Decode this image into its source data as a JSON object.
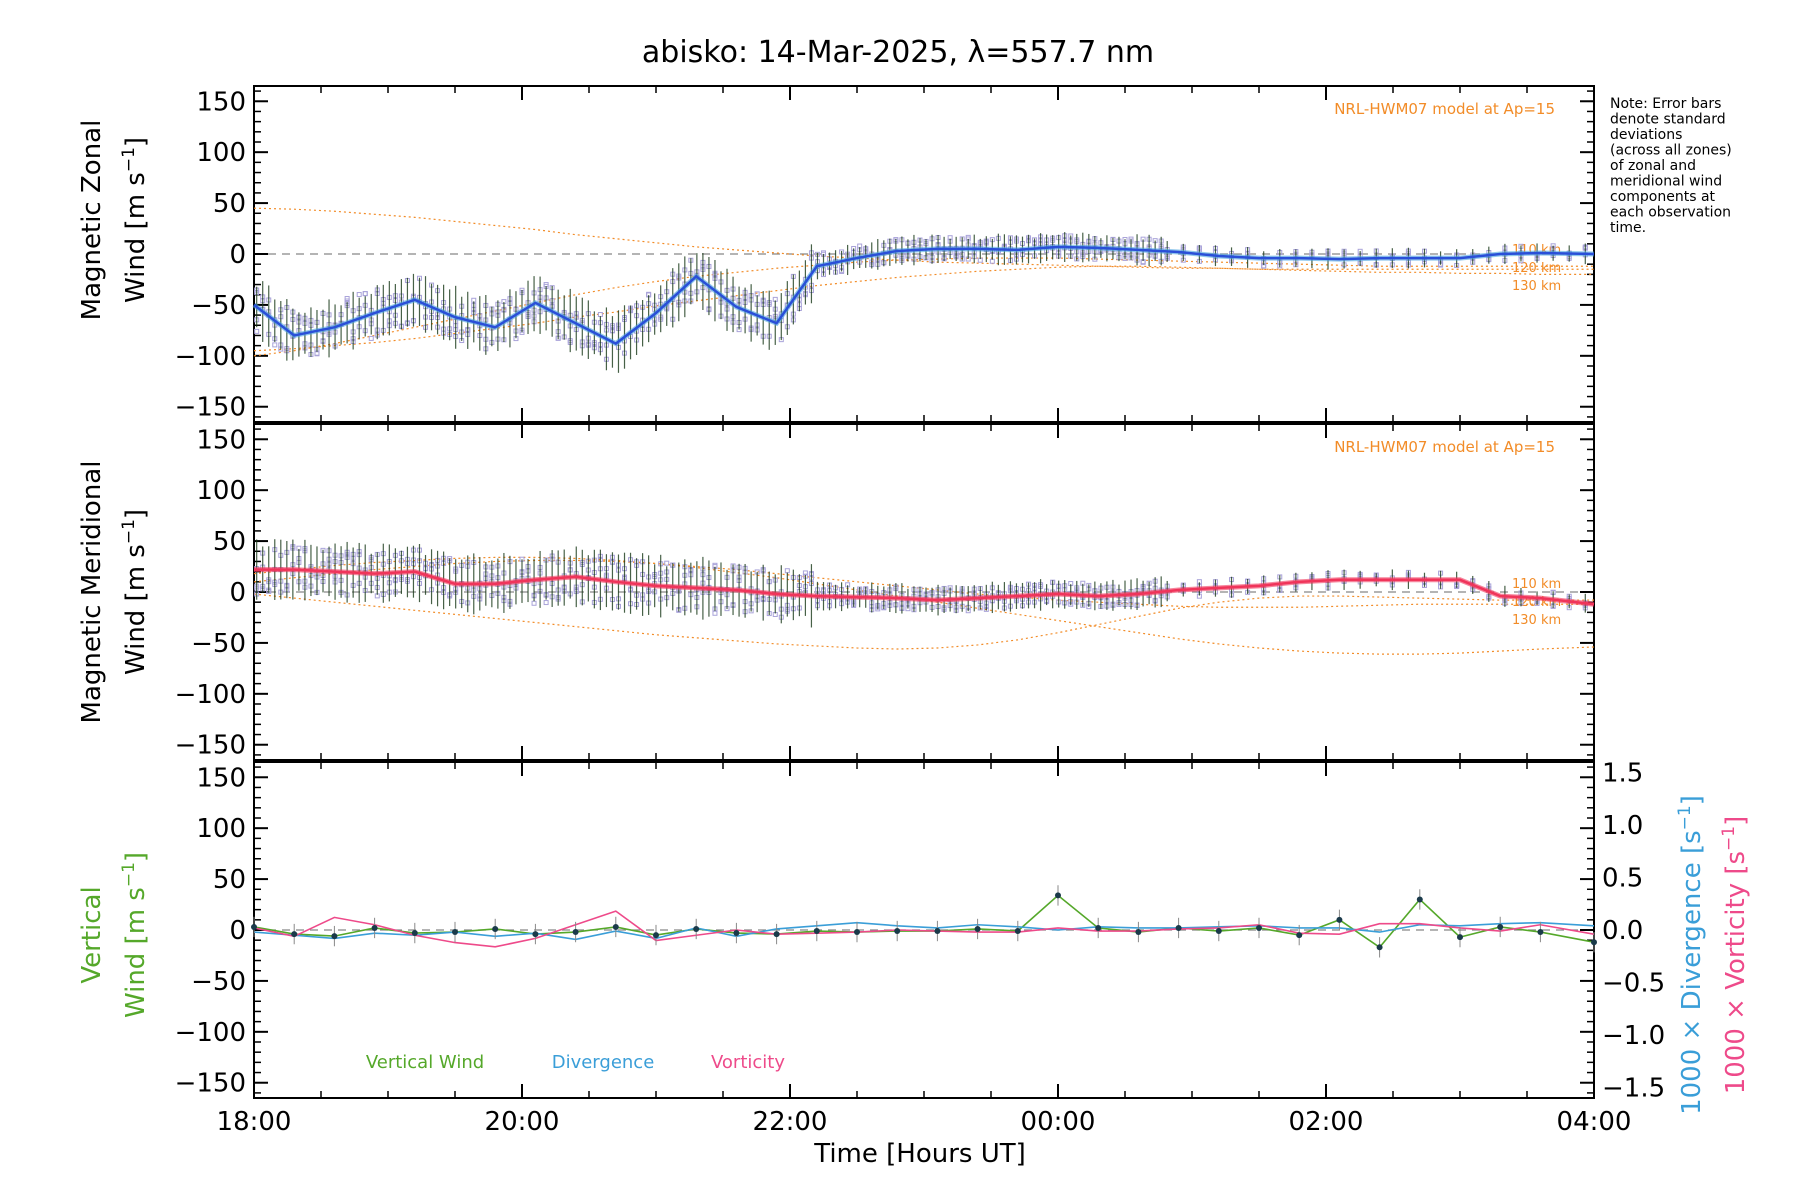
{
  "title": "abisko: 14-Mar-2025, λ=557.7 nm",
  "xlabel": "Time [Hours UT]",
  "xticks": [
    "18:00",
    "20:00",
    "22:00",
    "00:00",
    "02:00",
    "04:00"
  ],
  "yticks": [
    "150",
    "100",
    "50",
    "0",
    "−50",
    "−100",
    "−150"
  ],
  "rticks": [
    "1.5",
    "1.0",
    "0.5",
    "0.0",
    "−0.5",
    "−1.0",
    "−1.5"
  ],
  "note": [
    "Note: Error bars",
    "denote standard",
    "deviations",
    "(across all zones)",
    "of zonal and",
    "meridional wind",
    "components at",
    "each observation",
    "time."
  ],
  "model_label": "NRL-HWM07 model at Ap=15",
  "model_alts": [
    "110 km",
    "120 km",
    "130 km"
  ],
  "panels": {
    "zonal": {
      "ylabel_1": "Magnetic Zonal",
      "ylabel_2": "Wind",
      "units_pre": "[m s",
      "units_sup": "−1",
      "units_post": "]"
    },
    "meridional": {
      "ylabel_1": "Magnetic Meridional",
      "ylabel_2": "Wind",
      "units_pre": "[m s",
      "units_sup": "−1",
      "units_post": "]"
    },
    "vertical": {
      "ylabel_1": "Vertical",
      "ylabel_2": "Wind",
      "units_pre": "[m s",
      "units_sup": "−1",
      "units_post": "]"
    }
  },
  "right_axis": {
    "divergence_label": "1000 × Divergence",
    "vorticity_label": "1000 × Vorticity",
    "units_pre": "[s",
    "units_sup": "−1",
    "units_post": "]"
  },
  "legend": [
    "Vertical Wind",
    "Divergence",
    "Vorticity"
  ],
  "colors": {
    "zonal": "#2a4fd8",
    "zonal_light": "#4aa3e0",
    "meridional": "#f0345a",
    "vertical": "#55a82a",
    "divergence": "#3a9ed8",
    "vorticity": "#ee4a8a",
    "model": "#f28c28",
    "scatter": "#a9a3d9",
    "errorbar": "#1a3a1a"
  },
  "chart_data": [
    {
      "type": "line",
      "name": "Magnetic Zonal Wind",
      "xlim": [
        -6,
        4.0
      ],
      "ylim": [
        -165,
        165
      ],
      "x": [
        -6.0,
        -5.7,
        -5.4,
        -5.1,
        -4.8,
        -4.5,
        -4.2,
        -3.9,
        -3.6,
        -3.3,
        -3.0,
        -2.7,
        -2.4,
        -2.1,
        -1.8,
        -1.5,
        -1.2,
        -0.9,
        -0.6,
        -0.3,
        0.0,
        0.3,
        0.6,
        0.9,
        1.2,
        1.5,
        1.8,
        2.1,
        2.4,
        2.7,
        3.0,
        3.3,
        3.6,
        4.0
      ],
      "y": [
        -50,
        -80,
        -72,
        -58,
        -45,
        -62,
        -72,
        -48,
        -68,
        -88,
        -58,
        -22,
        -52,
        -68,
        -12,
        -4,
        3,
        5,
        5,
        4,
        7,
        6,
        4,
        2,
        -2,
        -4,
        -4,
        -5,
        -4,
        -4,
        -4,
        0,
        1,
        0
      ],
      "model": [
        {
          "label": "110 km",
          "y": [
            -100,
            -95,
            -88,
            -80,
            -72,
            -64,
            -56,
            -48,
            -40,
            -33,
            -27,
            -22,
            -18,
            -14,
            -11,
            -8,
            -6,
            -5,
            -4,
            -4,
            -4,
            -5,
            -6,
            -7,
            -8,
            -9,
            -10,
            -11,
            -12,
            -12,
            -12,
            -12,
            -12,
            -12
          ]
        },
        {
          "label": "120 km",
          "y": [
            45,
            44,
            42,
            39,
            36,
            32,
            28,
            24,
            19,
            15,
            11,
            7,
            4,
            1,
            -2,
            -4,
            -6,
            -8,
            -9,
            -10,
            -11,
            -12,
            -13,
            -14,
            -14,
            -15,
            -15,
            -15,
            -15,
            -15,
            -15,
            -15,
            -15,
            -15
          ]
        },
        {
          "label": "130 km",
          "y": [
            -95,
            -93,
            -90,
            -87,
            -83,
            -78,
            -73,
            -68,
            -62,
            -57,
            -51,
            -46,
            -41,
            -36,
            -31,
            -27,
            -23,
            -20,
            -17,
            -15,
            -13,
            -12,
            -12,
            -13,
            -14,
            -15,
            -16,
            -17,
            -18,
            -18,
            -19,
            -19,
            -20,
            -20
          ]
        }
      ]
    },
    {
      "type": "line",
      "name": "Magnetic Meridional Wind",
      "xlim": [
        -6,
        4.0
      ],
      "ylim": [
        -165,
        165
      ],
      "x": [
        -6.0,
        -5.7,
        -5.4,
        -5.1,
        -4.8,
        -4.5,
        -4.2,
        -3.9,
        -3.6,
        -3.3,
        -3.0,
        -2.7,
        -2.4,
        -2.1,
        -1.8,
        -1.5,
        -1.2,
        -0.9,
        -0.6,
        -0.3,
        0.0,
        0.3,
        0.6,
        0.9,
        1.2,
        1.5,
        1.8,
        2.1,
        2.4,
        2.7,
        3.0,
        3.3,
        3.6,
        4.0
      ],
      "y": [
        22,
        22,
        20,
        18,
        20,
        8,
        8,
        12,
        15,
        10,
        6,
        4,
        2,
        -2,
        -4,
        -5,
        -6,
        -8,
        -6,
        -4,
        -2,
        -4,
        -2,
        2,
        4,
        6,
        10,
        12,
        12,
        12,
        12,
        -4,
        -6,
        -12
      ],
      "model": [
        {
          "label": "110 km",
          "y": [
            -2,
            -6,
            -10,
            -14,
            -18,
            -22,
            -26,
            -30,
            -34,
            -38,
            -42,
            -45,
            -48,
            -51,
            -53,
            -55,
            -56,
            -55,
            -52,
            -47,
            -40,
            -32,
            -24,
            -16,
            -10,
            -6,
            -4,
            -4,
            -5,
            -6,
            -7,
            -8,
            -8,
            -8
          ]
        },
        {
          "label": "120 km",
          "y": [
            18,
            22,
            26,
            29,
            31,
            33,
            34,
            34,
            33,
            31,
            28,
            24,
            19,
            14,
            8,
            2,
            -4,
            -10,
            -16,
            -22,
            -28,
            -34,
            -40,
            -46,
            -51,
            -55,
            -58,
            -60,
            -61,
            -61,
            -60,
            -58,
            -56,
            -54
          ]
        },
        {
          "label": "130 km",
          "y": [
            10,
            14,
            18,
            22,
            25,
            28,
            30,
            31,
            31,
            30,
            28,
            25,
            22,
            18,
            14,
            10,
            6,
            2,
            -2,
            -5,
            -8,
            -10,
            -12,
            -14,
            -15,
            -15,
            -15,
            -14,
            -13,
            -12,
            -12,
            -12,
            -12,
            -12
          ]
        }
      ]
    },
    {
      "type": "line",
      "name": "Vertical Wind",
      "xlim": [
        -6,
        4.0
      ],
      "ylim": [
        -165,
        165
      ],
      "ylim_right": [
        -1.6,
        1.6
      ],
      "x": [
        -6.0,
        -5.7,
        -5.4,
        -5.1,
        -4.8,
        -4.5,
        -4.2,
        -3.9,
        -3.6,
        -3.3,
        -3.0,
        -2.7,
        -2.4,
        -2.1,
        -1.8,
        -1.5,
        -1.2,
        -0.9,
        -0.6,
        -0.3,
        0.0,
        0.3,
        0.6,
        0.9,
        1.2,
        1.5,
        1.8,
        2.1,
        2.4,
        2.7,
        3.0,
        3.3,
        3.6,
        4.0
      ],
      "series": [
        {
          "name": "Vertical Wind",
          "values": [
            3,
            -4,
            -6,
            2,
            -3,
            -2,
            1,
            -4,
            -2,
            3,
            -5,
            1,
            -3,
            -4,
            -1,
            -2,
            -1,
            -1,
            1,
            -1,
            34,
            2,
            -2,
            2,
            -1,
            2,
            -5,
            10,
            -17,
            30,
            -7,
            3,
            -2,
            -12
          ]
        },
        {
          "name": "Divergence",
          "values": [
            -0.02,
            -0.05,
            -0.08,
            -0.03,
            -0.05,
            -0.02,
            -0.06,
            -0.03,
            -0.09,
            -0.01,
            -0.08,
            0.02,
            -0.06,
            0.01,
            0.04,
            0.07,
            0.04,
            0.02,
            0.05,
            0.03,
            0.0,
            0.03,
            0.02,
            0.02,
            0.03,
            0.04,
            0.02,
            0.02,
            -0.02,
            0.05,
            0.04,
            0.06,
            0.07,
            0.04
          ]
        },
        {
          "name": "Vorticity",
          "values": [
            0.02,
            -0.06,
            0.12,
            0.05,
            -0.05,
            -0.12,
            -0.16,
            -0.08,
            0.05,
            0.18,
            -0.1,
            -0.05,
            0.0,
            -0.04,
            -0.03,
            -0.02,
            0.0,
            -0.01,
            -0.02,
            -0.02,
            0.02,
            -0.01,
            -0.01,
            0.01,
            0.02,
            0.05,
            -0.03,
            -0.04,
            0.06,
            0.06,
            0.02,
            -0.01,
            0.05,
            -0.04
          ]
        }
      ]
    }
  ]
}
